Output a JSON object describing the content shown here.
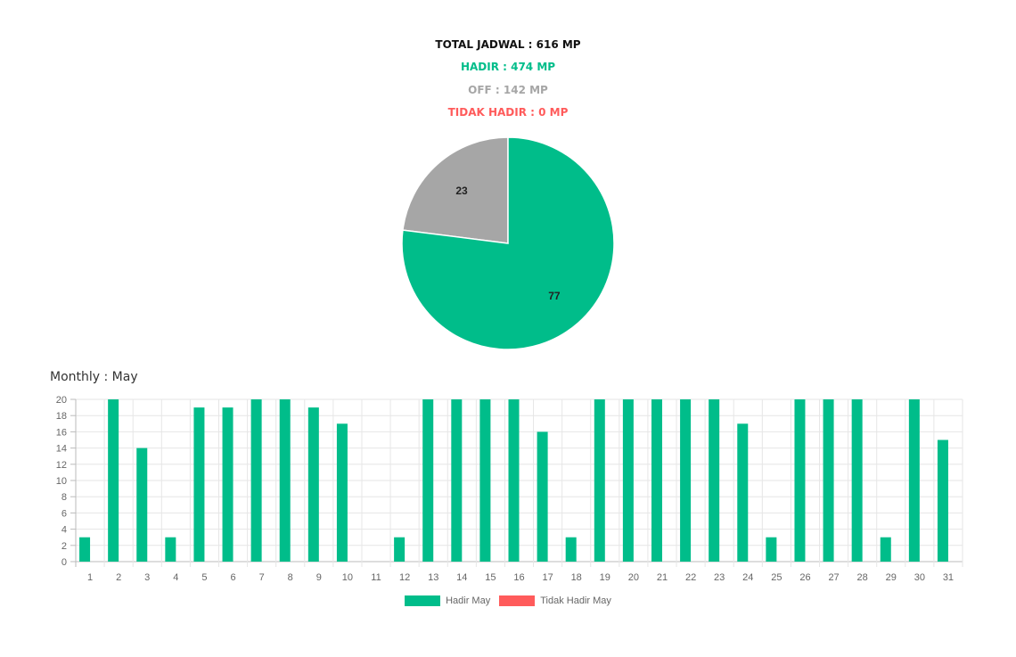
{
  "summary": {
    "total": "TOTAL JADWAL : 616 MP",
    "hadir": "HADIR : 474 MP",
    "off": "OFF : 142 MP",
    "tidak_hadir": "TIDAK HADIR : 0 MP"
  },
  "colors": {
    "hadir": "#00bd8a",
    "off": "#a6a6a6",
    "tidak_hadir": "#ff5b5b"
  },
  "monthly_title": "Monthly : May",
  "legend": {
    "hadir": "Hadir May",
    "tidak_hadir": "Tidak Hadir May"
  },
  "chart_data": [
    {
      "type": "pie",
      "slices": [
        {
          "label": "OFF",
          "value": 23,
          "color": "#a6a6a6"
        },
        {
          "label": "HADIR",
          "value": 77,
          "color": "#00bd8a"
        }
      ]
    },
    {
      "type": "bar",
      "title": "Monthly : May",
      "categories": [
        "1",
        "2",
        "3",
        "4",
        "5",
        "6",
        "7",
        "8",
        "9",
        "10",
        "11",
        "12",
        "13",
        "14",
        "15",
        "16",
        "17",
        "18",
        "19",
        "20",
        "21",
        "22",
        "23",
        "24",
        "25",
        "26",
        "27",
        "28",
        "29",
        "30",
        "31"
      ],
      "series": [
        {
          "name": "Hadir May",
          "color": "#00bd8a",
          "values": [
            3,
            20,
            14,
            3,
            19,
            19,
            20,
            20,
            19,
            17,
            0,
            3,
            20,
            20,
            20,
            20,
            16,
            3,
            20,
            20,
            20,
            20,
            20,
            17,
            3,
            20,
            20,
            20,
            3,
            20,
            15
          ]
        },
        {
          "name": "Tidak Hadir May",
          "color": "#ff5b5b",
          "values": [
            0,
            0,
            0,
            0,
            0,
            0,
            0,
            0,
            0,
            0,
            0,
            0,
            0,
            0,
            0,
            0,
            0,
            0,
            0,
            0,
            0,
            0,
            0,
            0,
            0,
            0,
            0,
            0,
            0,
            0,
            0
          ]
        }
      ],
      "ylim": [
        0,
        20
      ],
      "yticks": [
        0,
        2,
        4,
        6,
        8,
        10,
        12,
        14,
        16,
        18,
        20
      ],
      "grid": true,
      "legend_position": "bottom"
    }
  ]
}
